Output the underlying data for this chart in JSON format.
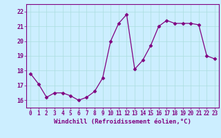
{
  "x": [
    0,
    1,
    2,
    3,
    4,
    5,
    6,
    7,
    8,
    9,
    10,
    11,
    12,
    13,
    14,
    15,
    16,
    17,
    18,
    19,
    20,
    21,
    22,
    23
  ],
  "y": [
    17.8,
    17.1,
    16.2,
    16.5,
    16.5,
    16.3,
    16.0,
    16.2,
    16.6,
    17.5,
    20.0,
    21.2,
    21.8,
    18.1,
    18.7,
    19.7,
    21.0,
    21.4,
    21.2,
    21.2,
    21.2,
    21.1,
    19.0,
    18.8
  ],
  "line_color": "#800080",
  "marker": "D",
  "markersize": 2.5,
  "linewidth": 0.9,
  "xlabel": "Windchill (Refroidissement éolien,°C)",
  "xlim": [
    -0.5,
    23.5
  ],
  "ylim": [
    15.5,
    22.5
  ],
  "yticks": [
    16,
    17,
    18,
    19,
    20,
    21,
    22
  ],
  "xticks": [
    0,
    1,
    2,
    3,
    4,
    5,
    6,
    7,
    8,
    9,
    10,
    11,
    12,
    13,
    14,
    15,
    16,
    17,
    18,
    19,
    20,
    21,
    22,
    23
  ],
  "background_color": "#cceeff",
  "grid_color": "#aadddd",
  "tick_color": "#800080",
  "label_color": "#800080",
  "axis_color": "#800080"
}
